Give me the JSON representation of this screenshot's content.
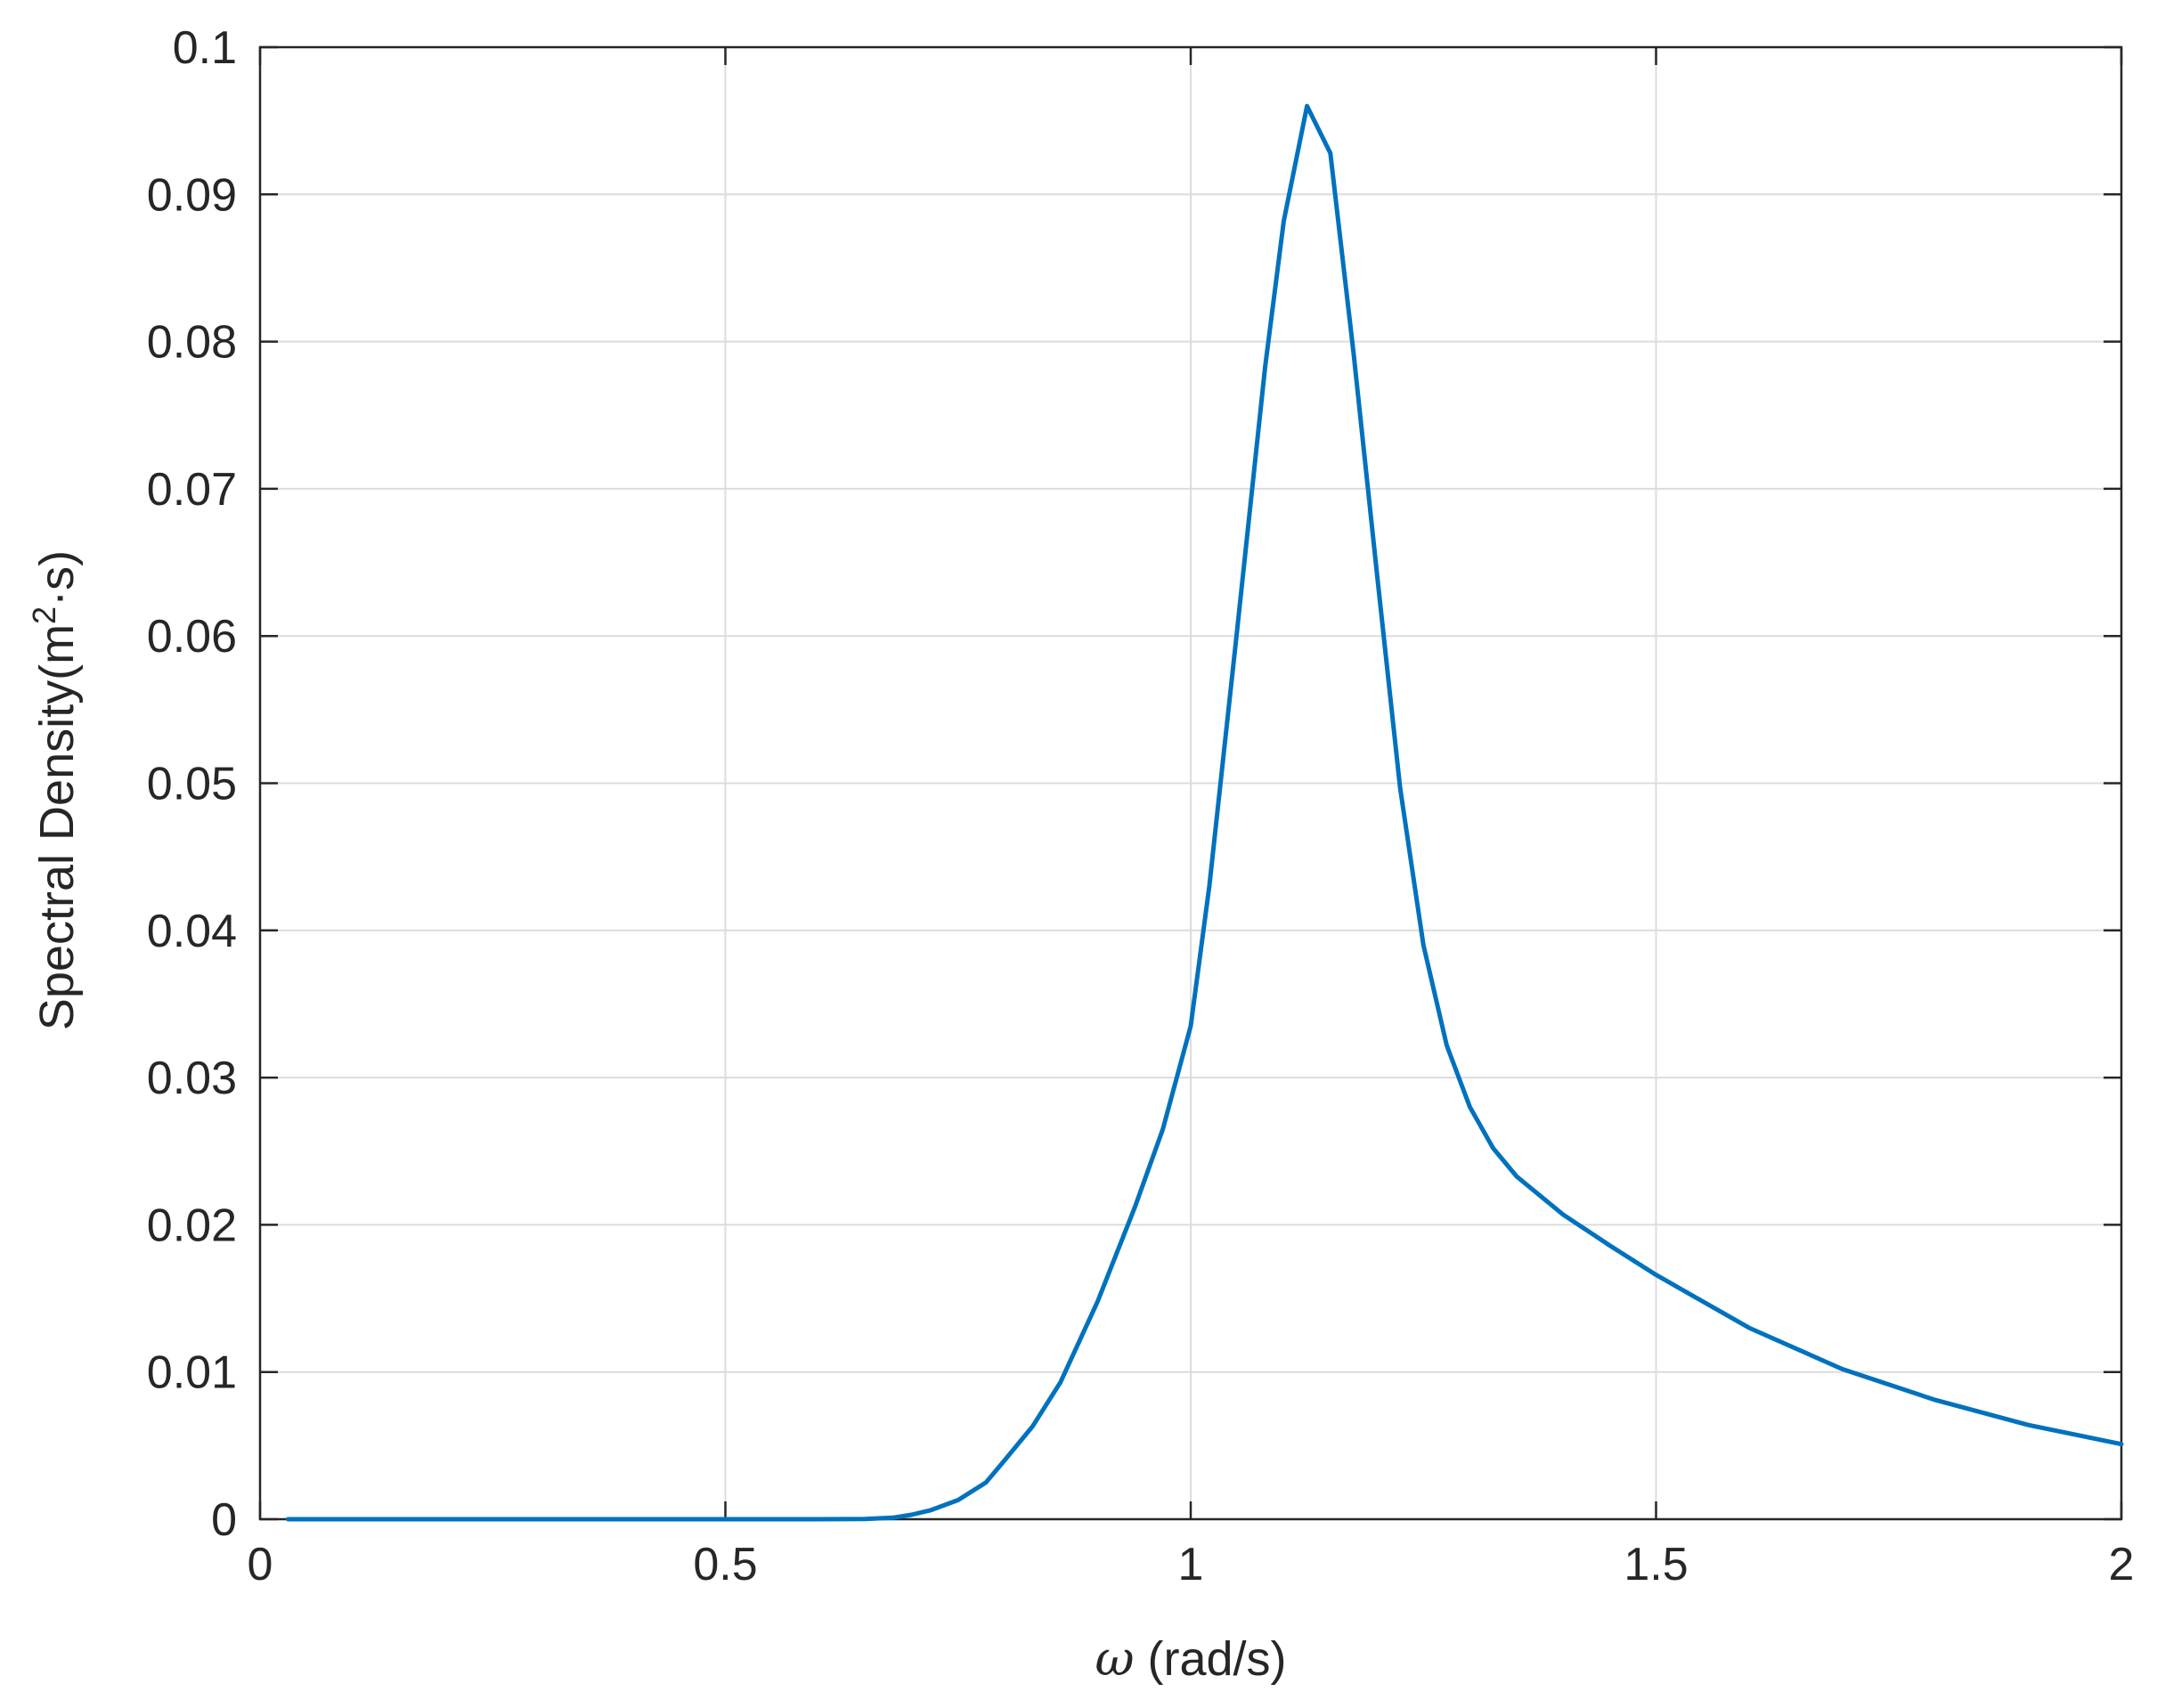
{
  "chart_data": {
    "type": "line",
    "xlabel_symbol": "ω",
    "xlabel_text": " (rad/s)",
    "ylabel_text": "Spectral Density(m",
    "ylabel_sup": "2",
    "ylabel_tail": "·s)",
    "xlim": [
      0,
      2
    ],
    "ylim": [
      0,
      0.1
    ],
    "xticks": [
      0,
      0.5,
      1,
      1.5,
      2
    ],
    "xtick_labels": [
      "0",
      "0.5",
      "1",
      "1.5",
      "2"
    ],
    "yticks": [
      0,
      0.01,
      0.02,
      0.03,
      0.04,
      0.05,
      0.06,
      0.07,
      0.08,
      0.09,
      0.1
    ],
    "ytick_labels": [
      "0",
      "0.01",
      "0.02",
      "0.03",
      "0.04",
      "0.05",
      "0.06",
      "0.07",
      "0.08",
      "0.09",
      "0.1"
    ],
    "grid": true,
    "series": [
      {
        "color": "#0072BD",
        "x": [
          0.03,
          0.1,
          0.2,
          0.3,
          0.4,
          0.5,
          0.6,
          0.65,
          0.68,
          0.7,
          0.72,
          0.75,
          0.78,
          0.8,
          0.83,
          0.86,
          0.9,
          0.94,
          0.97,
          1.0,
          1.02,
          1.05,
          1.08,
          1.1,
          1.125,
          1.15,
          1.175,
          1.2,
          1.225,
          1.25,
          1.275,
          1.3,
          1.325,
          1.35,
          1.4,
          1.45,
          1.5,
          1.6,
          1.7,
          1.8,
          1.9,
          2.0
        ],
        "y": [
          0,
          0,
          0,
          0,
          0,
          0,
          0,
          2e-05,
          0.0001,
          0.0003,
          0.0006,
          0.0013,
          0.0025,
          0.004,
          0.0063,
          0.0093,
          0.0148,
          0.0212,
          0.0265,
          0.0335,
          0.043,
          0.0605,
          0.0783,
          0.0882,
          0.096,
          0.0928,
          0.0792,
          0.0643,
          0.0497,
          0.039,
          0.0322,
          0.028,
          0.0252,
          0.0233,
          0.0207,
          0.0186,
          0.0166,
          0.013,
          0.0102,
          0.0081,
          0.0064,
          0.0051
        ]
      }
    ]
  }
}
